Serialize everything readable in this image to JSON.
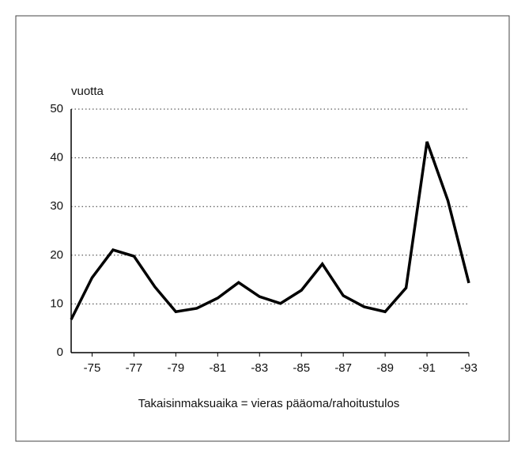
{
  "chart_data": {
    "type": "line",
    "ylabel": "vuotta",
    "caption": "Takaisinmaksuaika = vieras pääoma/rahoitustulos",
    "categories": [
      null,
      "-75",
      null,
      "-77",
      null,
      "-79",
      null,
      "-81",
      null,
      "-83",
      null,
      "-85",
      null,
      "-87",
      null,
      "-89",
      null,
      "-91",
      null,
      "-93"
    ],
    "series": [
      {
        "color": "#000000",
        "values": [
          6.8,
          15.4,
          21.1,
          19.8,
          13.5,
          8.4,
          9.1,
          11.2,
          14.4,
          11.5,
          10.1,
          12.8,
          18.2,
          11.7,
          9.4,
          8.4,
          13.3,
          43.3,
          31.2,
          14.3
        ]
      }
    ],
    "ylim": [
      0,
      50
    ],
    "yticks": [
      0,
      10,
      20,
      30,
      40,
      50
    ],
    "grid": true
  }
}
